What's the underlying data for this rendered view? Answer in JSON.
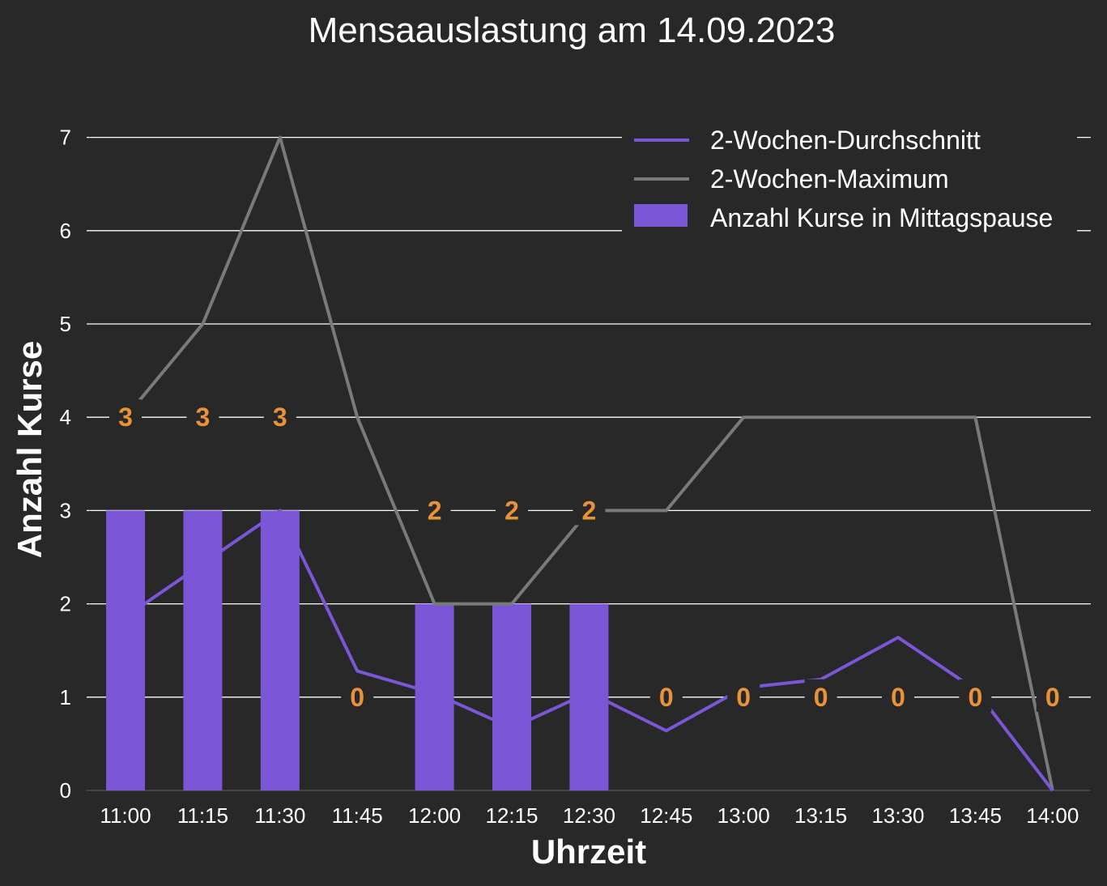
{
  "chart_data": {
    "type": "bar",
    "title": "Mensaauslastung am 14.09.2023",
    "xlabel": "Uhrzeit",
    "ylabel": "Anzahl Kurse",
    "categories": [
      "11:00",
      "11:15",
      "11:30",
      "11:45",
      "12:00",
      "12:15",
      "12:30",
      "12:45",
      "13:00",
      "13:15",
      "13:30",
      "13:45",
      "14:00"
    ],
    "ylim": [
      0,
      7.5
    ],
    "yticks": [
      "0",
      "1",
      "2",
      "3",
      "4",
      "5",
      "6",
      "7"
    ],
    "grid": true,
    "legend_position": "top-right",
    "series": [
      {
        "name": "2-Wochen-Durchschnitt",
        "kind": "line",
        "color": "#7b56d6",
        "values": [
          1.86,
          2.43,
          3.0,
          1.28,
          1.04,
          0.67,
          1.05,
          0.64,
          1.1,
          1.19,
          1.64,
          1.08,
          0.0
        ]
      },
      {
        "name": "2-Wochen-Maximum",
        "kind": "line",
        "color": "#7a7a7a",
        "values": [
          4,
          5,
          7,
          4,
          2,
          2,
          3,
          3,
          4,
          4,
          4,
          4,
          0
        ]
      },
      {
        "name": "Anzahl Kurse in Mittagspause",
        "kind": "bar",
        "color": "#7b56d6",
        "values": [
          3,
          3,
          3,
          0,
          2,
          2,
          2,
          0,
          0,
          0,
          0,
          0,
          0
        ]
      }
    ],
    "data_labels": [
      "3",
      "3",
      "3",
      "0",
      "2",
      "2",
      "2",
      "0",
      "0",
      "0",
      "0",
      "0",
      "0"
    ],
    "data_label_color": "#e8923a",
    "background": "#282828",
    "gridline_color": "#ffffff"
  }
}
